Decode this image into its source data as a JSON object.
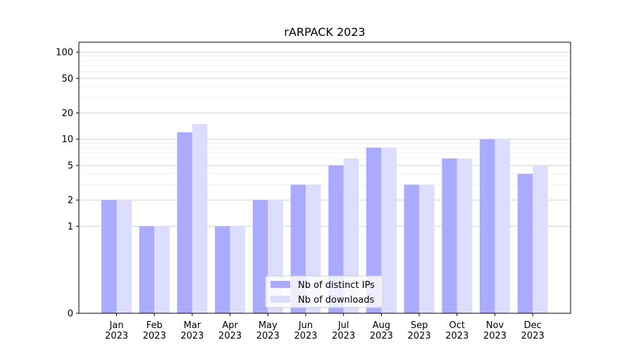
{
  "chart_data": {
    "type": "bar",
    "title": "rARPACK 2023",
    "xlabel": "",
    "ylabel": "",
    "y_scale": "symlog",
    "ylim": [
      0,
      130
    ],
    "y_ticks": [
      0,
      1,
      2,
      5,
      10,
      20,
      50,
      100
    ],
    "y_tick_labels": [
      "0",
      "1",
      "2",
      "5",
      "10",
      "20",
      "50",
      "100"
    ],
    "categories": [
      "Jan\n2023",
      "Feb\n2023",
      "Mar\n2023",
      "Apr\n2023",
      "May\n2023",
      "Jun\n2023",
      "Jul\n2023",
      "Aug\n2023",
      "Sep\n2023",
      "Oct\n2023",
      "Nov\n2023",
      "Dec\n2023"
    ],
    "series": [
      {
        "name": "Nb of distinct IPs",
        "color": "#aaaaff",
        "values": [
          2,
          1,
          12,
          1,
          2,
          3,
          5,
          8,
          3,
          6,
          10,
          4
        ]
      },
      {
        "name": "Nb of downloads",
        "color": "#ddddff",
        "values": [
          2,
          1,
          15,
          1,
          2,
          3,
          6,
          8,
          3,
          6,
          10,
          5
        ]
      }
    ],
    "grid": "y (major and minor)",
    "legend_position": "lower center"
  }
}
